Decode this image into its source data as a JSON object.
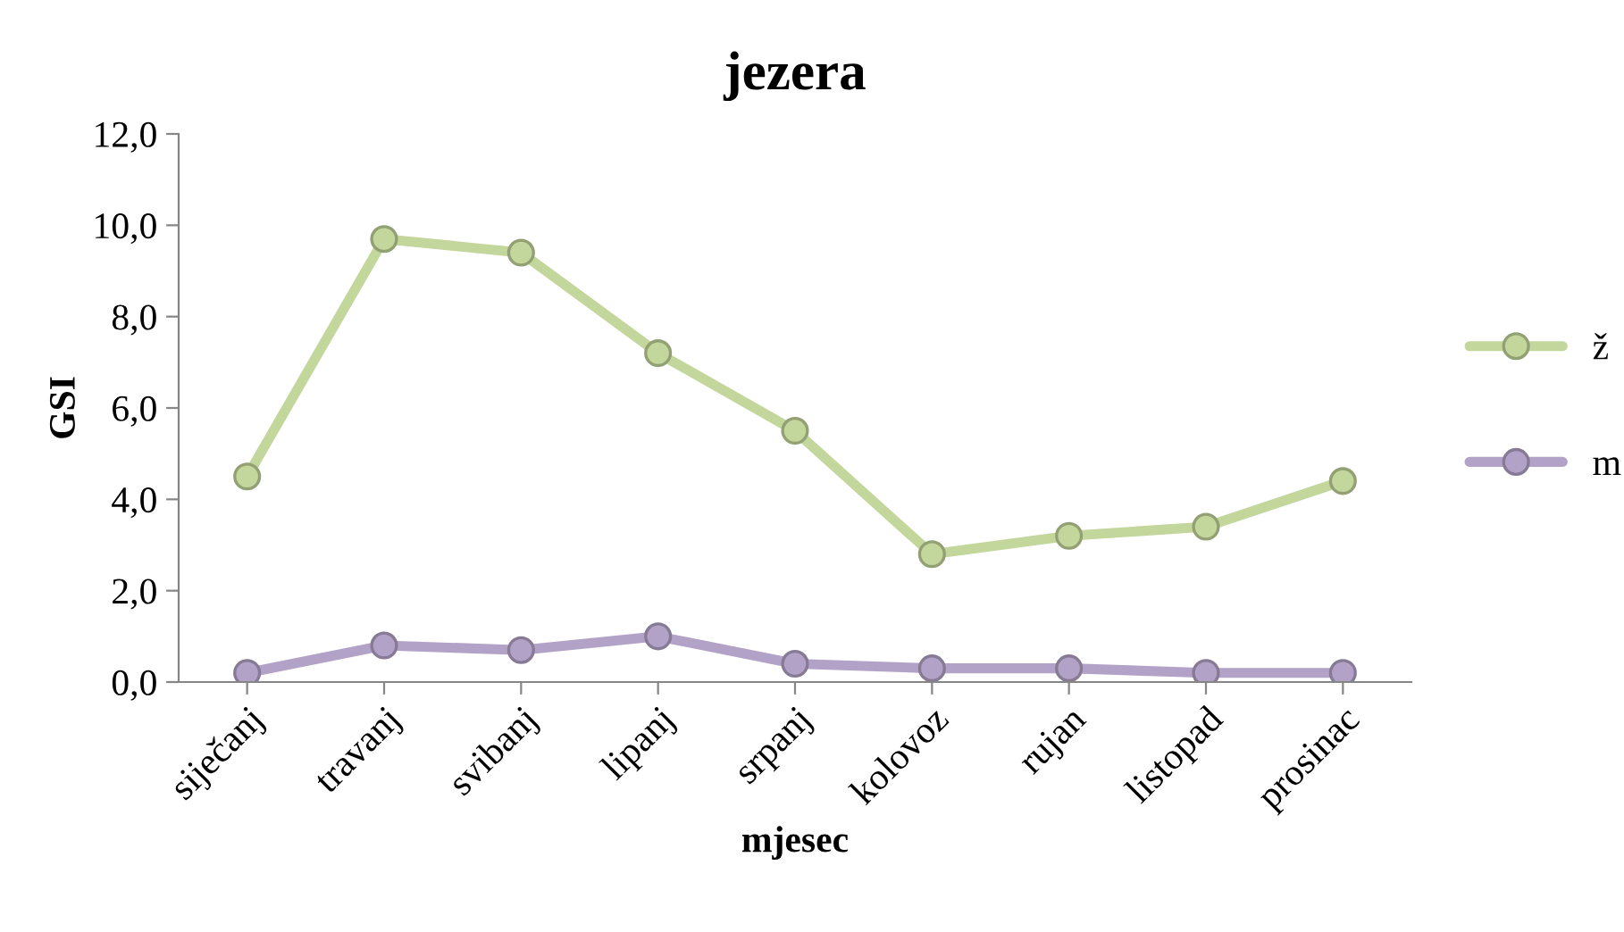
{
  "chart_data": {
    "type": "line",
    "title": "jezera",
    "xlabel": "mjesec",
    "ylabel": "GSI",
    "categories": [
      "siječanj",
      "travanj",
      "svibanj",
      "lipanj",
      "srpanj",
      "kolovoz",
      "rujan",
      "listopad",
      "prosinac"
    ],
    "series": [
      {
        "name": "ž",
        "color": "#c3d69b",
        "values": [
          4.5,
          9.7,
          9.4,
          7.2,
          5.5,
          2.8,
          3.2,
          3.4,
          4.4
        ]
      },
      {
        "name": "m",
        "color": "#b3a2c7",
        "values": [
          0.2,
          0.8,
          0.7,
          1.0,
          0.4,
          0.3,
          0.3,
          0.2,
          0.2
        ]
      }
    ],
    "ylim": [
      0,
      12
    ],
    "yticks": [
      {
        "value": 0,
        "label": "0,0"
      },
      {
        "value": 2,
        "label": "2,0"
      },
      {
        "value": 4,
        "label": "4,0"
      },
      {
        "value": 6,
        "label": "6,0"
      },
      {
        "value": 8,
        "label": "8,0"
      },
      {
        "value": 10,
        "label": "10,0"
      },
      {
        "value": 12,
        "label": "12,0"
      }
    ],
    "grid": false,
    "legend": "right",
    "marker": "circle",
    "line_style": "solid"
  }
}
